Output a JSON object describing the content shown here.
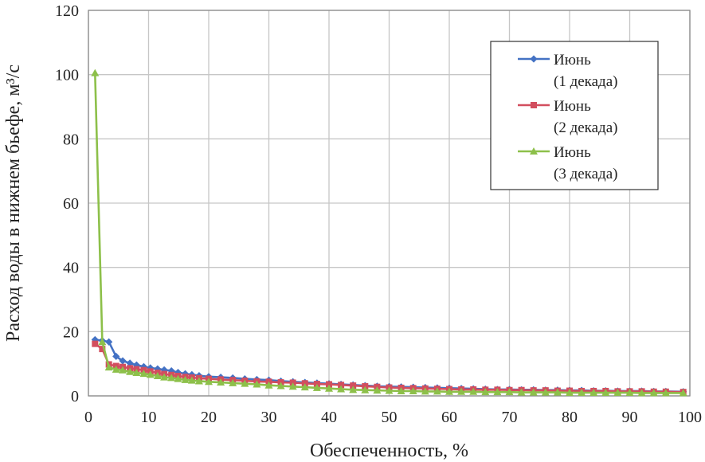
{
  "chart_data": {
    "type": "line",
    "title": "",
    "xlabel": "Обеспеченность, %",
    "ylabel": "Расход воды в нижнем бьефе, м³/с",
    "xlim": [
      0,
      100
    ],
    "ylim": [
      0,
      120
    ],
    "xticks": [
      0,
      10,
      20,
      30,
      40,
      50,
      60,
      70,
      80,
      90,
      100
    ],
    "yticks": [
      0,
      20,
      40,
      60,
      80,
      100,
      120
    ],
    "grid": true,
    "legend_position": "top-right",
    "series": [
      {
        "name_lines": [
          "Июнь",
          "(1 декада)"
        ],
        "color": "#4472C4",
        "marker": "diamond",
        "x": [
          1.1,
          2.3,
          3.4,
          4.6,
          5.7,
          6.9,
          8.0,
          9.2,
          10.3,
          11.5,
          12.6,
          13.8,
          14.9,
          16.1,
          17.2,
          18.4,
          20,
          22,
          24,
          26,
          28,
          30,
          32,
          34,
          36,
          38,
          40,
          42,
          44,
          46,
          48,
          50,
          52,
          54,
          56,
          58,
          60,
          62,
          64,
          66,
          68,
          70,
          72,
          74,
          76,
          78,
          80,
          82,
          84,
          86,
          88,
          90,
          92,
          94,
          96,
          98.9
        ],
        "y": [
          17.5,
          17.2,
          16.8,
          12.3,
          10.9,
          10.2,
          9.6,
          9.1,
          8.7,
          8.4,
          8.1,
          7.8,
          7.3,
          6.9,
          6.6,
          6.3,
          6.0,
          5.8,
          5.6,
          5.3,
          5.1,
          4.9,
          4.6,
          4.4,
          4.2,
          4.0,
          3.8,
          3.6,
          3.4,
          3.2,
          3.0,
          2.9,
          2.8,
          2.7,
          2.6,
          2.5,
          2.4,
          2.3,
          2.2,
          2.1,
          2.0,
          2.0,
          1.9,
          1.9,
          1.8,
          1.8,
          1.7,
          1.7,
          1.6,
          1.6,
          1.5,
          1.5,
          1.5,
          1.4,
          1.4,
          1.3
        ]
      },
      {
        "name_lines": [
          "Июнь",
          "(2 декада)"
        ],
        "color": "#D24E5E",
        "marker": "square",
        "x": [
          1.1,
          2.3,
          3.4,
          4.6,
          5.7,
          6.9,
          8.0,
          9.2,
          10.3,
          11.5,
          12.6,
          13.8,
          14.9,
          16.1,
          17.2,
          18.4,
          20,
          22,
          24,
          26,
          28,
          30,
          32,
          34,
          36,
          38,
          40,
          42,
          44,
          46,
          48,
          50,
          52,
          54,
          56,
          58,
          60,
          62,
          64,
          66,
          68,
          70,
          72,
          74,
          76,
          78,
          80,
          82,
          84,
          86,
          88,
          90,
          92,
          94,
          96,
          98.9
        ],
        "y": [
          16.2,
          14.6,
          9.8,
          9.3,
          9.0,
          8.6,
          8.3,
          8.0,
          7.6,
          7.2,
          6.8,
          6.5,
          6.2,
          5.9,
          5.7,
          5.5,
          5.3,
          5.1,
          4.9,
          4.7,
          4.5,
          4.4,
          4.2,
          4.1,
          3.9,
          3.7,
          3.6,
          3.4,
          3.2,
          3.0,
          2.8,
          2.6,
          2.5,
          2.4,
          2.3,
          2.2,
          2.1,
          2.0,
          2.0,
          1.9,
          1.9,
          1.8,
          1.8,
          1.7,
          1.7,
          1.6,
          1.6,
          1.5,
          1.5,
          1.5,
          1.4,
          1.4,
          1.4,
          1.3,
          1.3,
          1.2
        ]
      },
      {
        "name_lines": [
          "Июнь",
          "(3 декада)"
        ],
        "color": "#8DC04A",
        "marker": "triangle",
        "x": [
          1.1,
          2.3,
          3.4,
          4.6,
          5.7,
          6.9,
          8.0,
          9.2,
          10.3,
          11.5,
          12.6,
          13.8,
          14.9,
          16.1,
          17.2,
          18.4,
          20,
          22,
          24,
          26,
          28,
          30,
          32,
          34,
          36,
          38,
          40,
          42,
          44,
          46,
          48,
          50,
          52,
          54,
          56,
          58,
          60,
          62,
          64,
          66,
          68,
          70,
          72,
          74,
          76,
          78,
          80,
          82,
          84,
          86,
          88,
          90,
          92,
          94,
          96,
          98.9
        ],
        "y": [
          100.5,
          16.8,
          8.9,
          8.2,
          8.0,
          7.5,
          7.2,
          6.9,
          6.6,
          6.2,
          5.8,
          5.6,
          5.3,
          5.0,
          4.8,
          4.6,
          4.4,
          4.2,
          4.0,
          3.8,
          3.6,
          3.3,
          3.1,
          2.9,
          2.7,
          2.5,
          2.3,
          2.1,
          1.9,
          1.8,
          1.7,
          1.6,
          1.5,
          1.5,
          1.4,
          1.4,
          1.3,
          1.3,
          1.3,
          1.2,
          1.2,
          1.2,
          1.1,
          1.1,
          1.1,
          1.1,
          1.0,
          1.0,
          1.0,
          1.0,
          1.0,
          1.0,
          0.9,
          0.9,
          0.9,
          0.9
        ]
      }
    ]
  }
}
